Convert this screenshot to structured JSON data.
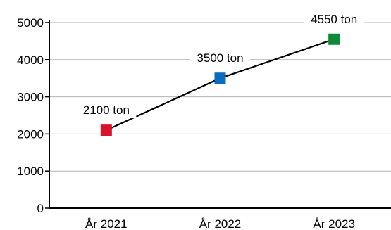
{
  "chart_data": {
    "type": "line",
    "categories": [
      "År 2021",
      "År 2022",
      "År 2023"
    ],
    "series": [
      {
        "values": [
          2100,
          3500,
          4550
        ],
        "data_labels": [
          "2100 ton",
          "3500 ton",
          "4550 ton"
        ],
        "marker_colors": [
          "#d7142c",
          "#0a6cbc",
          "#0c8a3a"
        ]
      }
    ],
    "y_ticks": [
      "0",
      "1000",
      "2000",
      "3000",
      "4000",
      "5000"
    ],
    "ylim": [
      0,
      5000
    ],
    "grid": true,
    "line_color": "#000000",
    "grid_color": "#b3b3b3"
  }
}
